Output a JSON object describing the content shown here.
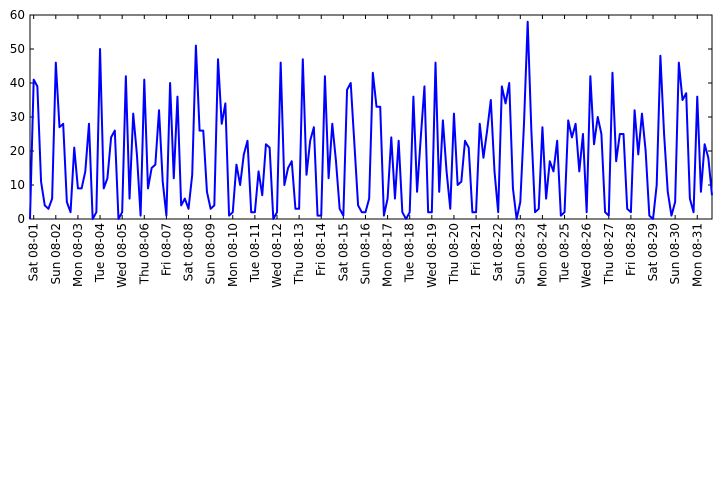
{
  "chart_data": {
    "type": "line",
    "color": "#0000ff",
    "ylim": [
      0,
      60
    ],
    "yticks": [
      0,
      10,
      20,
      30,
      40,
      50,
      60
    ],
    "categories": [
      null,
      "Sat 08-01",
      null,
      null,
      null,
      null,
      null,
      "Sun 08-02",
      null,
      null,
      null,
      null,
      null,
      "Mon 08-03",
      null,
      null,
      null,
      null,
      null,
      "Tue 08-04",
      null,
      null,
      null,
      null,
      null,
      "Wed 08-05",
      null,
      null,
      null,
      null,
      null,
      "Thu 08-06",
      null,
      null,
      null,
      null,
      null,
      "Fri 08-07",
      null,
      null,
      null,
      null,
      null,
      "Sat 08-08",
      null,
      null,
      null,
      null,
      null,
      "Sun 08-09",
      null,
      null,
      null,
      null,
      null,
      "Mon 08-10",
      null,
      null,
      null,
      null,
      null,
      "Tue 08-11",
      null,
      null,
      null,
      null,
      null,
      "Wed 08-12",
      null,
      null,
      null,
      null,
      null,
      "Thu 08-13",
      null,
      null,
      null,
      null,
      null,
      "Fri 08-14",
      null,
      null,
      null,
      null,
      null,
      "Sat 08-15",
      null,
      null,
      null,
      null,
      null,
      "Sun 08-16",
      null,
      null,
      null,
      null,
      null,
      "Mon 08-17",
      null,
      null,
      null,
      null,
      null,
      "Tue 08-18",
      null,
      null,
      null,
      null,
      null,
      "Wed 08-19",
      null,
      null,
      null,
      null,
      null,
      "Thu 08-20",
      null,
      null,
      null,
      null,
      null,
      "Fri 08-21",
      null,
      null,
      null,
      null,
      null,
      "Sat 08-22",
      null,
      null,
      null,
      null,
      null,
      "Sun 08-23",
      null,
      null,
      null,
      null,
      null,
      "Mon 08-24",
      null,
      null,
      null,
      null,
      null,
      "Tue 08-25",
      null,
      null,
      null,
      null,
      null,
      "Wed 08-26",
      null,
      null,
      null,
      null,
      null,
      "Thu 08-27",
      null,
      null,
      null,
      null,
      null,
      "Fri 08-28",
      null,
      null,
      null,
      null,
      null,
      "Sat 08-29",
      null,
      null,
      null,
      null,
      null,
      "Sun 08-30",
      null,
      null,
      null,
      null,
      null,
      "Mon 08-31",
      null,
      null,
      null,
      null
    ],
    "values": [
      0,
      41,
      39,
      11,
      4,
      3,
      6,
      46,
      27,
      28,
      5,
      2,
      21,
      9,
      9,
      14,
      28,
      0,
      2,
      50,
      9,
      12,
      24,
      26,
      0,
      2,
      42,
      6,
      31,
      19,
      1,
      41,
      9,
      15,
      16,
      32,
      11,
      1,
      40,
      12,
      36,
      4,
      6,
      3,
      13,
      51,
      26,
      26,
      8,
      3,
      4,
      47,
      28,
      34,
      1,
      2,
      16,
      10,
      19,
      23,
      2,
      2,
      14,
      7,
      22,
      21,
      0,
      2,
      46,
      10,
      15,
      17,
      3,
      3,
      47,
      13,
      23,
      27,
      1,
      1,
      42,
      12,
      28,
      17,
      3,
      1,
      38,
      40,
      22,
      4,
      2,
      2,
      6,
      43,
      33,
      33,
      1,
      6,
      24,
      6,
      23,
      2,
      0,
      2,
      36,
      8,
      24,
      39,
      2,
      2,
      46,
      8,
      29,
      14,
      3,
      31,
      10,
      11,
      23,
      21,
      2,
      2,
      28,
      18,
      26,
      35,
      14,
      2,
      39,
      34,
      40,
      9,
      0,
      5,
      28,
      58,
      26,
      2,
      3,
      27,
      6,
      17,
      14,
      23,
      1,
      2,
      29,
      24,
      28,
      14,
      25,
      2,
      42,
      22,
      30,
      25,
      2,
      1,
      43,
      17,
      25,
      25,
      3,
      2,
      32,
      19,
      31,
      20,
      1,
      0,
      10,
      48,
      25,
      8,
      1,
      5,
      46,
      35,
      37,
      6,
      2,
      36,
      8,
      22,
      18,
      7
    ]
  }
}
